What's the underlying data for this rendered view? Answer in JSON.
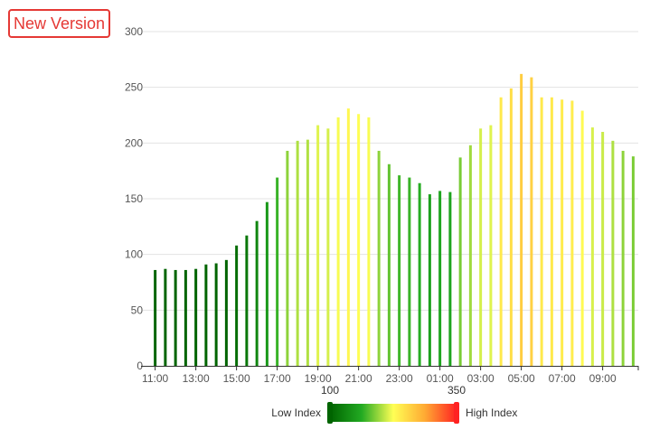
{
  "version_button": {
    "label": "New Version"
  },
  "chart_data": {
    "type": "bar",
    "x": [
      "11:00",
      "11:30",
      "12:00",
      "12:30",
      "13:00",
      "13:30",
      "14:00",
      "14:30",
      "15:00",
      "15:30",
      "16:00",
      "16:30",
      "17:00",
      "17:30",
      "18:00",
      "18:30",
      "19:00",
      "19:30",
      "20:00",
      "20:30",
      "21:00",
      "21:30",
      "22:00",
      "22:30",
      "23:00",
      "23:30",
      "00:00",
      "00:30",
      "01:00",
      "01:30",
      "02:00",
      "02:30",
      "03:00",
      "03:30",
      "04:00",
      "04:30",
      "05:00",
      "05:30",
      "06:00",
      "06:30",
      "07:00",
      "07:30",
      "08:00",
      "08:30",
      "09:00",
      "09:30",
      "10:00",
      "10:30"
    ],
    "values": [
      86,
      87,
      86,
      86,
      87,
      91,
      92,
      95,
      108,
      117,
      130,
      147,
      169,
      193,
      202,
      203,
      216,
      213,
      223,
      231,
      226,
      223,
      193,
      181,
      171,
      169,
      164,
      154,
      157,
      156,
      187,
      198,
      213,
      216,
      241,
      249,
      262,
      259,
      241,
      241,
      239,
      238,
      229,
      214,
      210,
      202,
      193,
      188
    ],
    "x_tick_labels": [
      "11:00",
      "13:00",
      "15:00",
      "17:00",
      "19:00",
      "21:00",
      "23:00",
      "01:00",
      "03:00",
      "05:00",
      "07:00",
      "09:00"
    ],
    "y_ticks": [
      0,
      50,
      100,
      150,
      200,
      250,
      300
    ],
    "ylim": [
      0,
      300
    ],
    "grid": true,
    "visual_map": {
      "min_label": "100",
      "max_label": "350",
      "min": 100,
      "max": 350,
      "low_text": "Low Index",
      "high_text": "High Index",
      "colors": [
        "#006400",
        "#22aa22",
        "#ffff55",
        "#ffaa33",
        "#ff2222"
      ]
    }
  }
}
